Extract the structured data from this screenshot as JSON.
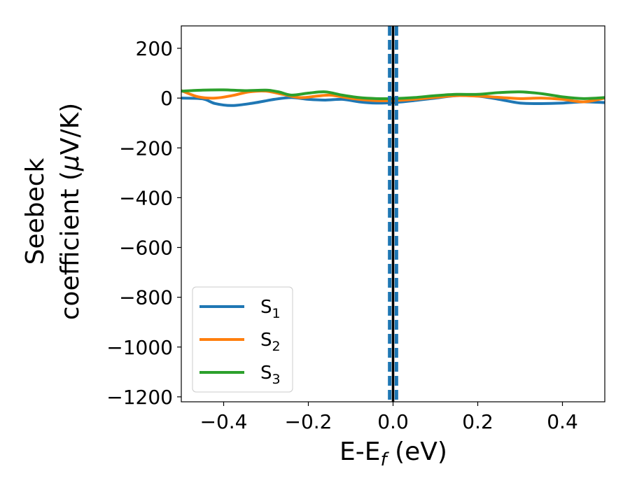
{
  "chart_data": {
    "type": "line",
    "xlabel": {
      "main": "E-E",
      "sub": "f",
      "tail": " (eV)"
    },
    "ylabel": {
      "line1": "Seebeck",
      "line2": "coefficient  (",
      "mu": "μ",
      "line2_tail": "V/K)"
    },
    "xlim": [
      -0.5,
      0.5
    ],
    "ylim": [
      -1220,
      290
    ],
    "xticks": [
      -0.4,
      -0.2,
      0.0,
      0.2,
      0.4
    ],
    "xtick_labels": [
      "−0.4",
      "−0.2",
      "0.0",
      "0.2",
      "0.4"
    ],
    "yticks": [
      200,
      0,
      -200,
      -400,
      -600,
      -800,
      -1000,
      -1200
    ],
    "ytick_labels": [
      "200",
      "0",
      "−200",
      "−400",
      "−600",
      "−800",
      "−1000",
      "−1200"
    ],
    "grid": false,
    "legend_position": "lower-left",
    "vlines": [
      {
        "x": 0.0,
        "color": "#000000",
        "style": "solid"
      },
      {
        "x": -0.008,
        "color": "#1f77b4",
        "style": "dashed"
      },
      {
        "x": 0.008,
        "color": "#1f77b4",
        "style": "dashed"
      }
    ],
    "series": [
      {
        "name": "S",
        "sub": "1",
        "color": "#1f77b4",
        "x": [
          -0.5,
          -0.45,
          -0.42,
          -0.38,
          -0.33,
          -0.28,
          -0.24,
          -0.2,
          -0.16,
          -0.12,
          -0.08,
          -0.04,
          0.0,
          0.05,
          0.1,
          0.15,
          0.2,
          0.25,
          0.3,
          0.35,
          0.4,
          0.45,
          0.5
        ],
        "y": [
          0,
          -3,
          -22,
          -30,
          -20,
          -5,
          2,
          -5,
          -8,
          -5,
          -15,
          -20,
          -18,
          -10,
          0,
          10,
          8,
          -5,
          -20,
          -22,
          -20,
          -15,
          -18
        ]
      },
      {
        "name": "S",
        "sub": "2",
        "color": "#ff7f0e",
        "x": [
          -0.5,
          -0.46,
          -0.42,
          -0.38,
          -0.34,
          -0.3,
          -0.26,
          -0.22,
          -0.18,
          -0.15,
          -0.12,
          -0.08,
          -0.04,
          0.0,
          0.05,
          0.1,
          0.15,
          0.2,
          0.25,
          0.3,
          0.35,
          0.4,
          0.45,
          0.5
        ],
        "y": [
          30,
          5,
          0,
          10,
          25,
          28,
          15,
          2,
          8,
          12,
          5,
          -5,
          -10,
          -10,
          -5,
          3,
          10,
          8,
          3,
          -2,
          0,
          -5,
          -15,
          0
        ]
      },
      {
        "name": "S",
        "sub": "3",
        "color": "#2ca02c",
        "x": [
          -0.5,
          -0.45,
          -0.4,
          -0.35,
          -0.3,
          -0.27,
          -0.24,
          -0.2,
          -0.16,
          -0.12,
          -0.08,
          -0.04,
          0.0,
          0.05,
          0.1,
          0.15,
          0.2,
          0.25,
          0.3,
          0.35,
          0.4,
          0.45,
          0.5
        ],
        "y": [
          28,
          32,
          33,
          30,
          32,
          25,
          12,
          20,
          25,
          12,
          2,
          -2,
          -2,
          2,
          10,
          15,
          15,
          22,
          25,
          18,
          5,
          -2,
          2
        ]
      }
    ]
  }
}
